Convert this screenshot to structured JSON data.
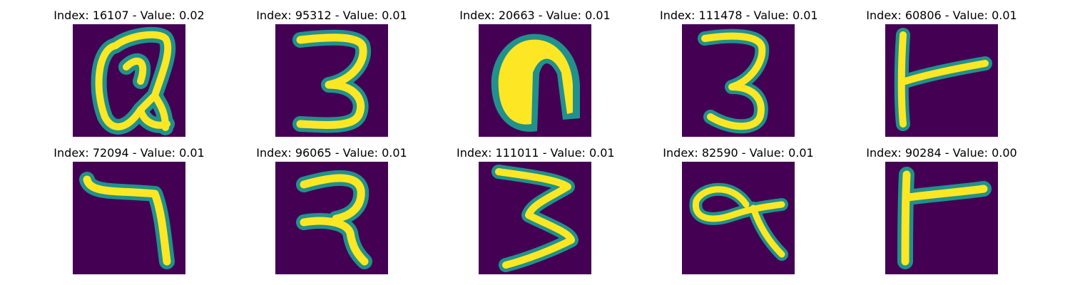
{
  "colormap": {
    "background": "#440154",
    "mid": "#21918c",
    "bright": "#fde725"
  },
  "panels": [
    {
      "title": "Index: 16107 - Value: 0.02",
      "glyph": "alpha-a"
    },
    {
      "title": "Index: 95312 - Value: 0.01",
      "glyph": "digit-3"
    },
    {
      "title": "Index: 20663 - Value: 0.01",
      "glyph": "blob-n"
    },
    {
      "title": "Index: 111478 - Value: 0.01",
      "glyph": "digit-3"
    },
    {
      "title": "Index: 60806 - Value: 0.01",
      "glyph": "t-shape"
    },
    {
      "title": "Index: 72094 - Value: 0.01",
      "glyph": "digit-7"
    },
    {
      "title": "Index: 96065 - Value: 0.01",
      "glyph": "r-shape"
    },
    {
      "title": "Index: 111011 - Value: 0.01",
      "glyph": "digit-3-wide"
    },
    {
      "title": "Index: 82590 - Value: 0.01",
      "glyph": "q-shape"
    },
    {
      "title": "Index: 90284 - Value: 0.00",
      "glyph": "t-shape"
    }
  ]
}
